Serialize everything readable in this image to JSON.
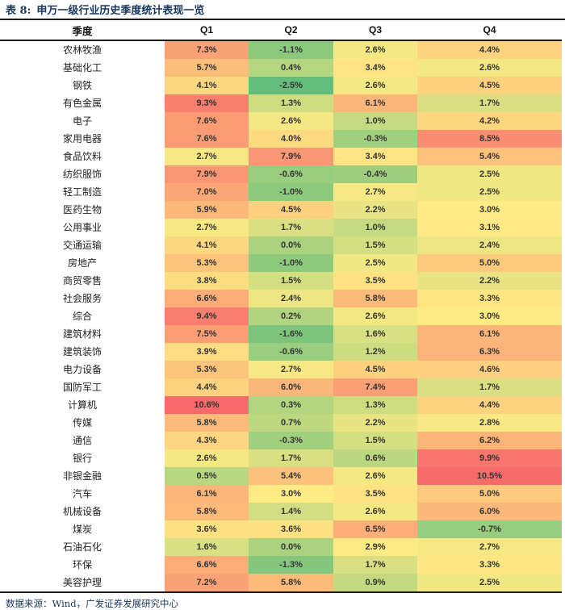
{
  "title": {
    "prefix": "表 8:",
    "text": "申万一级行业历史季度统计表现一览"
  },
  "table": {
    "header": {
      "label": "季度",
      "quarters": [
        "Q1",
        "Q2",
        "Q3",
        "Q4"
      ]
    }
  },
  "footer": {
    "text": "数据来源：Wind，广发证券发展研究中心"
  },
  "heatmap": {
    "min_value": -2.5,
    "mid_value": 3.0,
    "max_value": 10.6,
    "min_color": "#63BE7B",
    "mid_color": "#FFEB84",
    "max_color": "#F8696B",
    "value_suffix": "%"
  },
  "chart_data": {
    "type": "heatmap",
    "title": "表 8: 申万一级行业历史季度统计表现一览",
    "columns": [
      "Q1",
      "Q2",
      "Q3",
      "Q4"
    ],
    "unit": "%",
    "rows": [
      "农林牧渔",
      "基础化工",
      "钢铁",
      "有色金属",
      "电子",
      "家用电器",
      "食品饮料",
      "纺织服饰",
      "轻工制造",
      "医药生物",
      "公用事业",
      "交通运输",
      "房地产",
      "商贸零售",
      "社会服务",
      "综合",
      "建筑材料",
      "建筑装饰",
      "电力设备",
      "国防军工",
      "计算机",
      "传媒",
      "通信",
      "银行",
      "非银金融",
      "汽车",
      "机械设备",
      "煤炭",
      "石油石化",
      "环保",
      "美容护理"
    ],
    "values": [
      [
        7.3,
        -1.1,
        2.6,
        4.4
      ],
      [
        5.7,
        0.4,
        3.4,
        2.6
      ],
      [
        4.1,
        -2.5,
        2.6,
        4.5
      ],
      [
        9.3,
        1.3,
        6.1,
        1.7
      ],
      [
        7.6,
        2.6,
        1.0,
        4.2
      ],
      [
        7.6,
        4.0,
        -0.3,
        8.5
      ],
      [
        2.7,
        7.9,
        3.4,
        5.4
      ],
      [
        7.9,
        -0.6,
        -0.4,
        2.5
      ],
      [
        7.0,
        -1.0,
        2.7,
        2.5
      ],
      [
        5.9,
        4.5,
        2.2,
        3.0
      ],
      [
        2.7,
        1.7,
        1.0,
        3.1
      ],
      [
        4.1,
        0.0,
        1.5,
        2.4
      ],
      [
        5.3,
        -1.0,
        2.5,
        5.0
      ],
      [
        3.8,
        1.5,
        3.5,
        2.2
      ],
      [
        6.6,
        2.4,
        5.8,
        3.3
      ],
      [
        9.4,
        0.2,
        2.6,
        3.0
      ],
      [
        7.5,
        -1.6,
        1.6,
        6.1
      ],
      [
        3.9,
        -0.6,
        1.2,
        6.3
      ],
      [
        5.3,
        2.7,
        4.5,
        4.6
      ],
      [
        4.4,
        6.0,
        7.4,
        1.7
      ],
      [
        10.6,
        0.3,
        1.3,
        4.4
      ],
      [
        5.8,
        0.7,
        2.2,
        2.8
      ],
      [
        4.3,
        -0.3,
        1.5,
        6.2
      ],
      [
        2.6,
        1.7,
        0.6,
        9.9
      ],
      [
        0.5,
        5.4,
        2.6,
        10.5
      ],
      [
        6.1,
        3.0,
        3.5,
        5.0
      ],
      [
        5.8,
        1.4,
        2.6,
        6.0
      ],
      [
        3.6,
        3.6,
        6.5,
        -0.7
      ],
      [
        1.6,
        0.0,
        2.9,
        2.7
      ],
      [
        6.6,
        -1.3,
        1.7,
        3.3
      ],
      [
        7.2,
        5.8,
        0.9,
        2.5
      ]
    ],
    "color_scale": {
      "min": {
        "value": -2.5,
        "color": "#63BE7B"
      },
      "mid": {
        "value": 3.0,
        "color": "#FFEB84"
      },
      "max": {
        "value": 10.6,
        "color": "#F8696B"
      }
    },
    "layout": {
      "legend": false,
      "grid": false,
      "first_column": "industry-names"
    }
  }
}
